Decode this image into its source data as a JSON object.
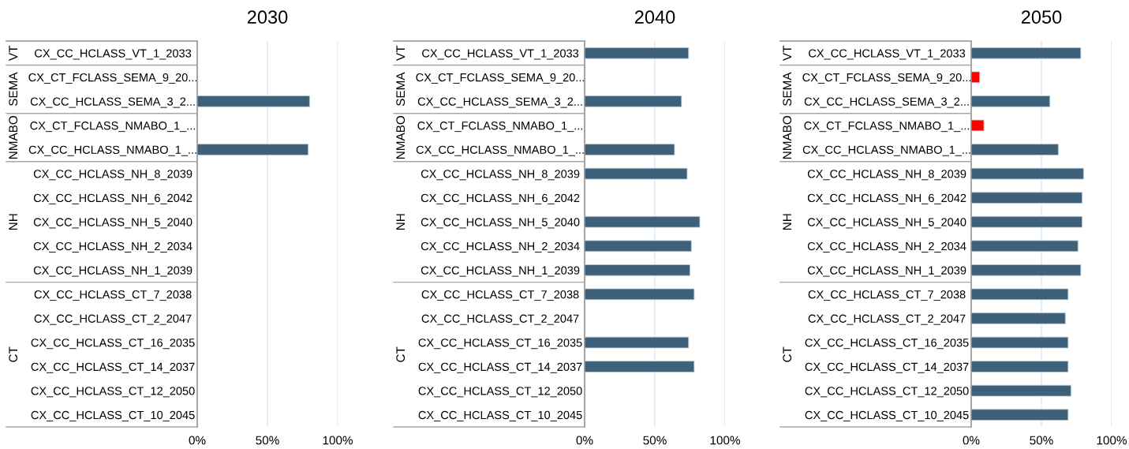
{
  "chart_data": [
    {
      "type": "bar",
      "orientation": "horizontal",
      "title": "2030",
      "categories": [
        "CX_CC_HCLASS_VT_1_2033",
        "CX_CT_FCLASS_SEMA_9_20...",
        "CX_CC_HCLASS_SEMA_3_2...",
        "CX_CT_FCLASS_NMABO_1_...",
        "CX_CC_HCLASS_NMABO_1_...",
        "CX_CC_HCLASS_NH_8_2039",
        "CX_CC_HCLASS_NH_6_2042",
        "CX_CC_HCLASS_NH_5_2040",
        "CX_CC_HCLASS_NH_2_2034",
        "CX_CC_HCLASS_NH_1_2039",
        "CX_CC_HCLASS_CT_7_2038",
        "CX_CC_HCLASS_CT_2_2047",
        "CX_CC_HCLASS_CT_16_2035",
        "CX_CC_HCLASS_CT_14_2037",
        "CX_CC_HCLASS_CT_12_2050",
        "CX_CC_HCLASS_CT_10_2045"
      ],
      "values": [
        null,
        null,
        0.8,
        null,
        0.79,
        null,
        null,
        null,
        null,
        null,
        null,
        null,
        null,
        null,
        null,
        null
      ],
      "colors": [
        "#3e6078",
        "#ff0000",
        "#3e6078",
        "#ff0000",
        "#3e6078",
        "#3e6078",
        "#3e6078",
        "#3e6078",
        "#3e6078",
        "#3e6078",
        "#3e6078",
        "#3e6078",
        "#3e6078",
        "#3e6078",
        "#3e6078",
        "#3e6078"
      ],
      "annotations": [
        "VT",
        "SEMA",
        "NMABO",
        "NH",
        "CT"
      ],
      "xlim": [
        0,
        1
      ],
      "xticks": [
        {
          "value": 0,
          "label": "0%"
        },
        {
          "value": 0.5,
          "label": "50%"
        },
        {
          "value": 1,
          "label": "100%"
        }
      ],
      "grid": "x"
    },
    {
      "type": "bar",
      "orientation": "horizontal",
      "title": "2040",
      "categories": [
        "CX_CC_HCLASS_VT_1_2033",
        "CX_CT_FCLASS_SEMA_9_20...",
        "CX_CC_HCLASS_SEMA_3_2...",
        "CX_CT_FCLASS_NMABO_1_...",
        "CX_CC_HCLASS_NMABO_1_...",
        "CX_CC_HCLASS_NH_8_2039",
        "CX_CC_HCLASS_NH_6_2042",
        "CX_CC_HCLASS_NH_5_2040",
        "CX_CC_HCLASS_NH_2_2034",
        "CX_CC_HCLASS_NH_1_2039",
        "CX_CC_HCLASS_CT_7_2038",
        "CX_CC_HCLASS_CT_2_2047",
        "CX_CC_HCLASS_CT_16_2035",
        "CX_CC_HCLASS_CT_14_2037",
        "CX_CC_HCLASS_CT_12_2050",
        "CX_CC_HCLASS_CT_10_2045"
      ],
      "values": [
        0.74,
        null,
        0.69,
        null,
        0.64,
        0.73,
        null,
        0.82,
        0.76,
        0.75,
        0.78,
        null,
        0.74,
        0.78,
        null,
        null
      ],
      "colors": [
        "#3e6078",
        "#ff0000",
        "#3e6078",
        "#ff0000",
        "#3e6078",
        "#3e6078",
        "#3e6078",
        "#3e6078",
        "#3e6078",
        "#3e6078",
        "#3e6078",
        "#3e6078",
        "#3e6078",
        "#3e6078",
        "#3e6078",
        "#3e6078"
      ],
      "annotations": [
        "VT",
        "SEMA",
        "NMABO",
        "NH",
        "CT"
      ],
      "xlim": [
        0,
        1
      ],
      "xticks": [
        {
          "value": 0,
          "label": "0%"
        },
        {
          "value": 0.5,
          "label": "50%"
        },
        {
          "value": 1,
          "label": "100%"
        }
      ],
      "grid": "x"
    },
    {
      "type": "bar",
      "orientation": "horizontal",
      "title": "2050",
      "categories": [
        "CX_CC_HCLASS_VT_1_2033",
        "CX_CT_FCLASS_SEMA_9_20...",
        "CX_CC_HCLASS_SEMA_3_2...",
        "CX_CT_FCLASS_NMABO_1_...",
        "CX_CC_HCLASS_NMABO_1_...",
        "CX_CC_HCLASS_NH_8_2039",
        "CX_CC_HCLASS_NH_6_2042",
        "CX_CC_HCLASS_NH_5_2040",
        "CX_CC_HCLASS_NH_2_2034",
        "CX_CC_HCLASS_NH_1_2039",
        "CX_CC_HCLASS_CT_7_2038",
        "CX_CC_HCLASS_CT_2_2047",
        "CX_CC_HCLASS_CT_16_2035",
        "CX_CC_HCLASS_CT_14_2037",
        "CX_CC_HCLASS_CT_12_2050",
        "CX_CC_HCLASS_CT_10_2045"
      ],
      "values": [
        0.78,
        0.06,
        0.56,
        0.09,
        0.62,
        0.8,
        0.79,
        0.79,
        0.76,
        0.78,
        0.69,
        0.67,
        0.69,
        0.69,
        0.71,
        0.69
      ],
      "colors": [
        "#3e6078",
        "#ff0000",
        "#3e6078",
        "#ff0000",
        "#3e6078",
        "#3e6078",
        "#3e6078",
        "#3e6078",
        "#3e6078",
        "#3e6078",
        "#3e6078",
        "#3e6078",
        "#3e6078",
        "#3e6078",
        "#3e6078",
        "#3e6078"
      ],
      "annotations": [
        "VT",
        "SEMA",
        "NMABO",
        "NH",
        "CT"
      ],
      "xlim": [
        0,
        1
      ],
      "xticks": [
        {
          "value": 0,
          "label": "0%"
        },
        {
          "value": 0.5,
          "label": "50%"
        },
        {
          "value": 1,
          "label": "100%"
        }
      ],
      "grid": "x"
    }
  ]
}
